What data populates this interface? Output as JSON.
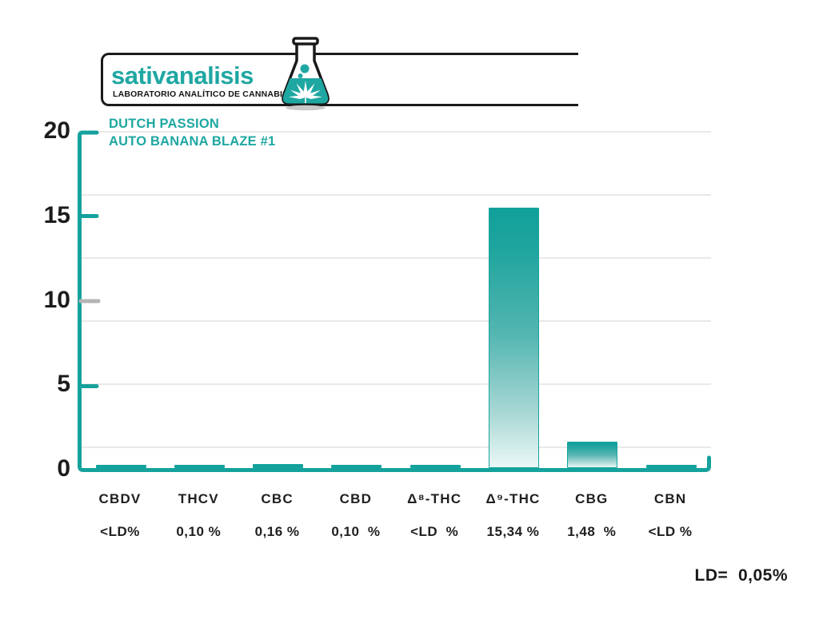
{
  "logo": {
    "brand": "sativanalisis",
    "tagline": "LABORATORIO ANALÍTICO DE CANNABIS",
    "flask_icon": "erlenmeyer-flask-with-cannabis-leaf",
    "brand_color": "#1FA7A2",
    "frame_color": "#1A1A1A"
  },
  "chart_data": {
    "type": "bar",
    "title": "DUTCH PASSION",
    "subtitle": "AUTO BANANA BLAZE #1",
    "categories": [
      "CBDV",
      "THCV",
      "CBC",
      "CBD",
      "Δ⁸-THC",
      "Δ⁹-THC",
      "CBG",
      "CBN"
    ],
    "values": [
      0.05,
      0.1,
      0.16,
      0.1,
      0.05,
      15.34,
      1.48,
      0.05
    ],
    "value_labels": [
      "<LD%",
      "0,10 %",
      "0,16 %",
      "0,10  %",
      "<LD  %",
      "15,34 %",
      "1,48  %",
      "<LD %"
    ],
    "below_detection_limit": [
      true,
      false,
      false,
      false,
      true,
      false,
      false,
      true
    ],
    "y_ticks": [
      0,
      5,
      10,
      15,
      20
    ],
    "ylim": [
      0,
      20
    ],
    "grid": true,
    "legend": "none",
    "note": "LD=  0,05%",
    "detection_limit": "0,05%",
    "colors": {
      "bar_top": "#12A09A",
      "bar_bottom": "#EAF7F6",
      "axis": "#16A29C",
      "gray_tick": "#B4B4B4",
      "gridline": "#E9E9E9",
      "label_text": "#1D1D1D"
    }
  }
}
